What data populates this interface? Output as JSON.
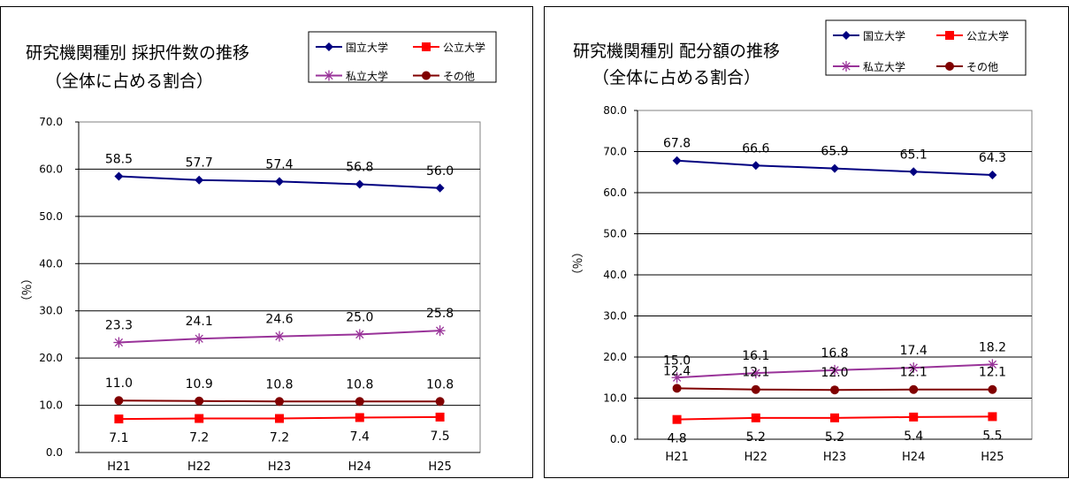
{
  "chart_data": [
    {
      "type": "line",
      "title": "研究機関種別 採択件数の推移",
      "subtitle": "（全体に占める割合）",
      "ylabel": "（％）",
      "ylim": [
        0,
        70
      ],
      "yticks": [
        "0.0",
        "10.0",
        "20.0",
        "30.0",
        "40.0",
        "50.0",
        "60.0",
        "70.0"
      ],
      "categories": [
        "H21",
        "H22",
        "H23",
        "H24",
        "H25"
      ],
      "legend_position": "top-right",
      "series": [
        {
          "name": "国立大学",
          "color": "#000080",
          "marker": "diamond",
          "values": [
            58.5,
            57.7,
            57.4,
            56.8,
            56.0
          ],
          "labels": [
            "58.5",
            "57.7",
            "57.4",
            "56.8",
            "56.0"
          ],
          "label_pos": "above"
        },
        {
          "name": "公立大学",
          "color": "#ff0000",
          "marker": "square",
          "values": [
            7.1,
            7.2,
            7.2,
            7.4,
            7.5
          ],
          "labels": [
            "7.1",
            "7.2",
            "7.2",
            "7.4",
            "7.5"
          ],
          "label_pos": "below"
        },
        {
          "name": "私立大学",
          "color": "#993399",
          "marker": "star",
          "values": [
            23.3,
            24.1,
            24.6,
            25.0,
            25.8
          ],
          "labels": [
            "23.3",
            "24.1",
            "24.6",
            "25.0",
            "25.8"
          ],
          "label_pos": "above"
        },
        {
          "name": "その他",
          "color": "#800000",
          "marker": "circle",
          "values": [
            11.0,
            10.9,
            10.8,
            10.8,
            10.8
          ],
          "labels": [
            "11.0",
            "10.9",
            "10.8",
            "10.8",
            "10.8"
          ],
          "label_pos": "above"
        }
      ]
    },
    {
      "type": "line",
      "title": "研究機関種別 配分額の推移",
      "subtitle": "（全体に占める割合）",
      "ylabel": "（％）",
      "ylim": [
        0,
        80
      ],
      "yticks": [
        "0.0",
        "10.0",
        "20.0",
        "30.0",
        "40.0",
        "50.0",
        "60.0",
        "70.0",
        "80.0"
      ],
      "categories": [
        "H21",
        "H22",
        "H23",
        "H24",
        "H25"
      ],
      "legend_position": "top-right",
      "series": [
        {
          "name": "国立大学",
          "color": "#000080",
          "marker": "diamond",
          "values": [
            67.8,
            66.6,
            65.9,
            65.1,
            64.3
          ],
          "labels": [
            "67.8",
            "66.6",
            "65.9",
            "65.1",
            "64.3"
          ],
          "label_pos": "above"
        },
        {
          "name": "公立大学",
          "color": "#ff0000",
          "marker": "square",
          "values": [
            4.8,
            5.2,
            5.2,
            5.4,
            5.5
          ],
          "labels": [
            "4.8",
            "5.2",
            "5.2",
            "5.4",
            "5.5"
          ],
          "label_pos": "below"
        },
        {
          "name": "私立大学",
          "color": "#993399",
          "marker": "star",
          "values": [
            15.0,
            16.1,
            16.8,
            17.4,
            18.2
          ],
          "labels": [
            "15.0",
            "16.1",
            "16.8",
            "17.4",
            "18.2"
          ],
          "label_pos": "above"
        },
        {
          "name": "その他",
          "color": "#800000",
          "marker": "circle",
          "values": [
            12.4,
            12.1,
            12.0,
            12.1,
            12.1
          ],
          "labels": [
            "12.4",
            "12.1",
            "12.0",
            "12.1",
            "12.1"
          ],
          "label_pos": "above"
        }
      ]
    }
  ]
}
